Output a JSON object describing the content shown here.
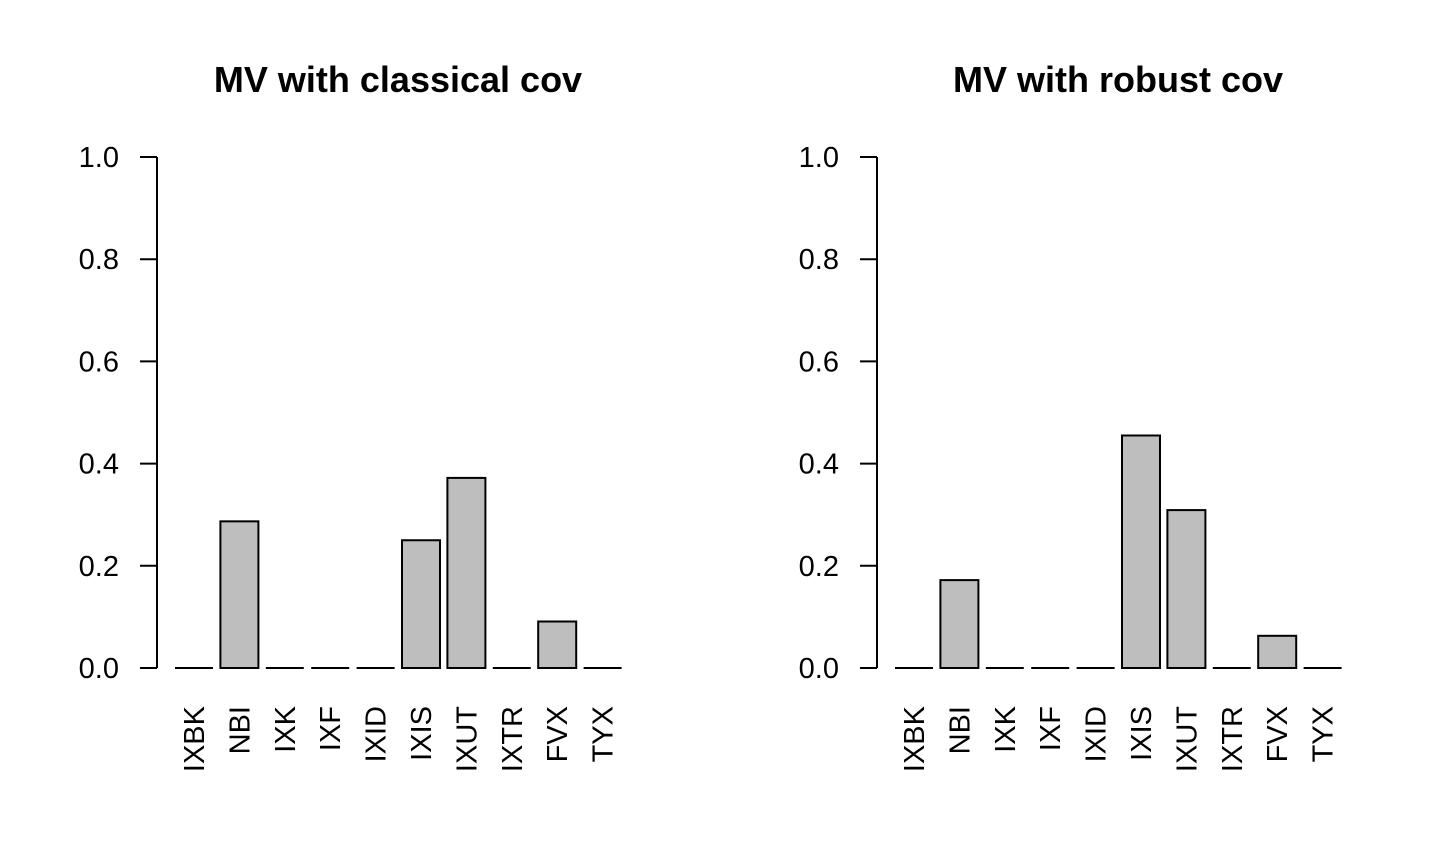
{
  "chart_data": [
    {
      "type": "bar",
      "title": "MV with classical cov",
      "xlabel": "",
      "ylabel": "",
      "categories": [
        "IXBK",
        "NBI",
        "IXK",
        "IXF",
        "IXID",
        "IXIS",
        "IXUT",
        "IXTR",
        "FVX",
        "TYX"
      ],
      "values": [
        0.0,
        0.287,
        0.0,
        0.0,
        0.0,
        0.25,
        0.372,
        0.0,
        0.091,
        0.0
      ],
      "ylim": [
        0,
        1
      ],
      "yticks": [
        "0.0",
        "0.2",
        "0.4",
        "0.6",
        "0.8",
        "1.0"
      ],
      "bar_color": "#bebebe",
      "grid": false,
      "legend": "none"
    },
    {
      "type": "bar",
      "title": "MV with robust cov",
      "xlabel": "",
      "ylabel": "",
      "categories": [
        "IXBK",
        "NBI",
        "IXK",
        "IXF",
        "IXID",
        "IXIS",
        "IXUT",
        "IXTR",
        "FVX",
        "TYX"
      ],
      "values": [
        0.0,
        0.172,
        0.0,
        0.0,
        0.0,
        0.455,
        0.309,
        0.0,
        0.063,
        0.0
      ],
      "ylim": [
        0,
        1
      ],
      "yticks": [
        "0.0",
        "0.2",
        "0.4",
        "0.6",
        "0.8",
        "1.0"
      ],
      "bar_color": "#bebebe",
      "grid": false,
      "legend": "none"
    }
  ]
}
